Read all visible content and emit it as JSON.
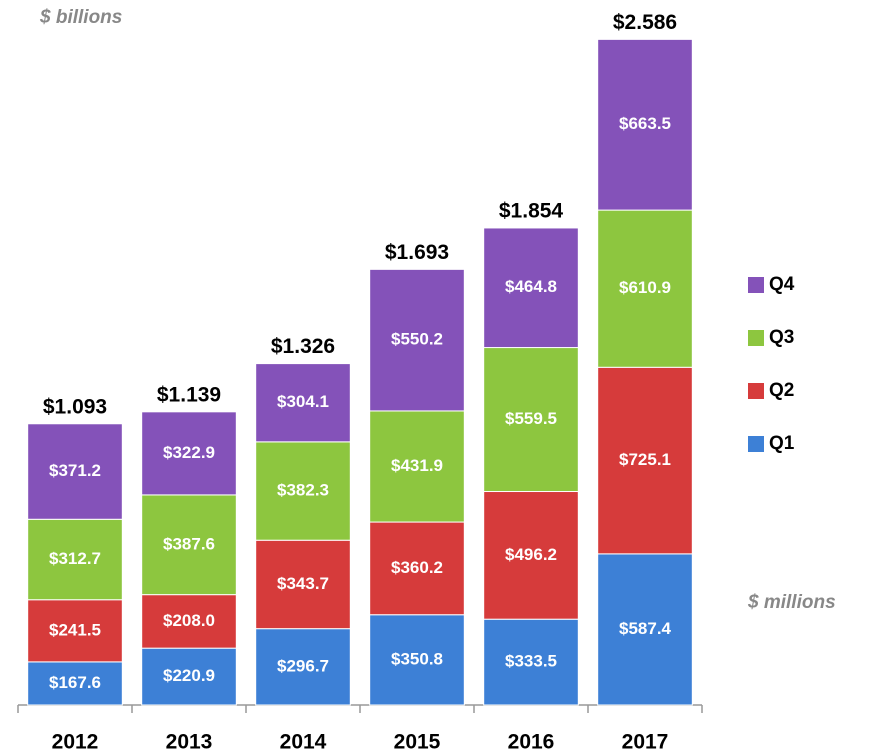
{
  "chart_data": {
    "type": "stacked_bar",
    "categories": [
      "2012",
      "2013",
      "2014",
      "2015",
      "2016",
      "2017"
    ],
    "series": [
      {
        "name": "Q1",
        "color": "#3d80d6",
        "values": [
          167.6,
          220.9,
          296.7,
          350.8,
          333.5,
          587.4
        ],
        "value_labels": [
          "$167.6",
          "$220.9",
          "$296.7",
          "$350.8",
          "$333.5",
          "$587.4"
        ]
      },
      {
        "name": "Q2",
        "color": "#d63b3b",
        "values": [
          241.5,
          208.0,
          343.7,
          360.2,
          496.2,
          725.1
        ],
        "value_labels": [
          "$241.5",
          "$208.0",
          "$343.7",
          "$360.2",
          "$496.2",
          "$725.1"
        ]
      },
      {
        "name": "Q3",
        "color": "#8dc63f",
        "values": [
          312.7,
          387.6,
          382.3,
          431.9,
          559.5,
          610.9
        ],
        "value_labels": [
          "$312.7",
          "$387.6",
          "$382.3",
          "$431.9",
          "$559.5",
          "$610.9"
        ]
      },
      {
        "name": "Q4",
        "color": "#8452b9",
        "values": [
          371.2,
          322.9,
          304.1,
          550.2,
          464.8,
          663.5
        ],
        "value_labels": [
          "$371.2",
          "$322.9",
          "$304.1",
          "$550.2",
          "$464.8",
          "$663.5"
        ]
      }
    ],
    "totals": {
      "values": [
        1.093,
        1.139,
        1.326,
        1.693,
        1.854,
        2.586
      ],
      "value_labels": [
        "$1.093",
        "$1.139",
        "$1.326",
        "$1.693",
        "$1.854",
        "$2.586"
      ]
    },
    "annotations": [
      "$ billions",
      "$ millions"
    ],
    "ylim": [
      0,
      2600
    ],
    "legend": "right"
  }
}
